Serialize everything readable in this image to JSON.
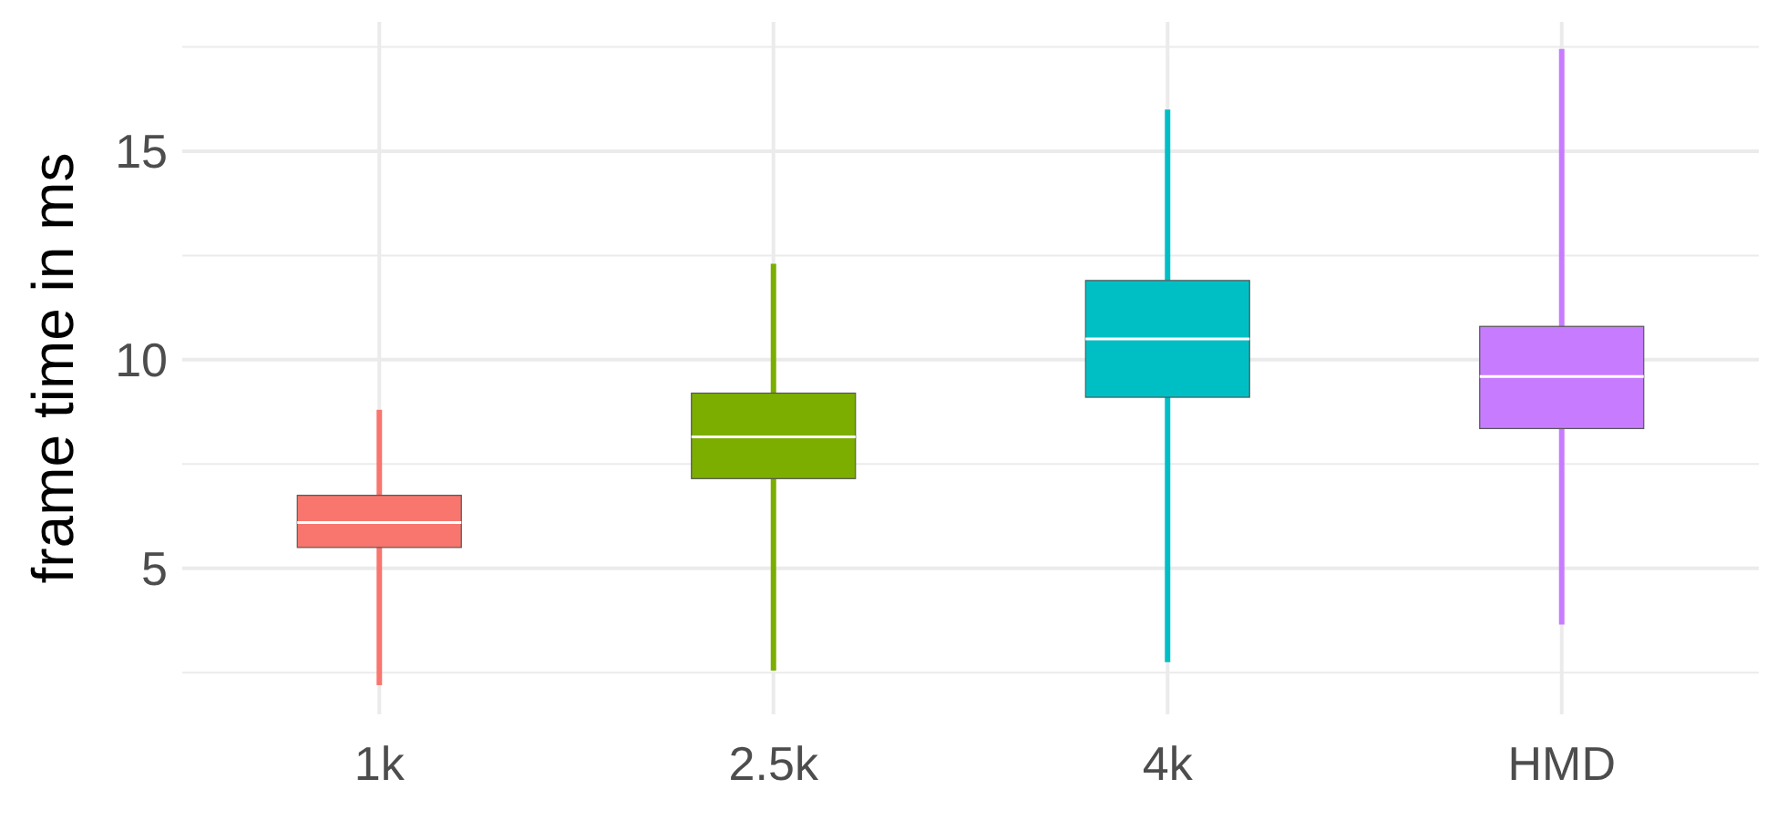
{
  "chart_data": {
    "type": "box",
    "ylabel": "frame time in ms",
    "categories": [
      "1k",
      "2.5k",
      "4k",
      "HMD"
    ],
    "colors": [
      "#f8766d",
      "#7cae00",
      "#00bfc4",
      "#c77cff"
    ],
    "boxes": [
      {
        "low": 2.2,
        "q1": 5.5,
        "median": 6.1,
        "q3": 6.75,
        "high": 8.8
      },
      {
        "low": 2.55,
        "q1": 7.15,
        "median": 8.15,
        "q3": 9.2,
        "high": 12.3
      },
      {
        "low": 2.75,
        "q1": 9.1,
        "median": 10.5,
        "q3": 11.9,
        "high": 16.0
      },
      {
        "low": 3.65,
        "q1": 8.35,
        "median": 9.6,
        "q3": 10.8,
        "high": 17.45
      }
    ],
    "ylim": [
      1.5,
      18.1
    ],
    "yticks": [
      {
        "value": 2.5,
        "label": null
      },
      5,
      {
        "value": 7.5,
        "label": null
      },
      10,
      {
        "value": 12.5,
        "label": null
      },
      15,
      {
        "value": 17.5,
        "label": null
      }
    ],
    "grid": true
  }
}
